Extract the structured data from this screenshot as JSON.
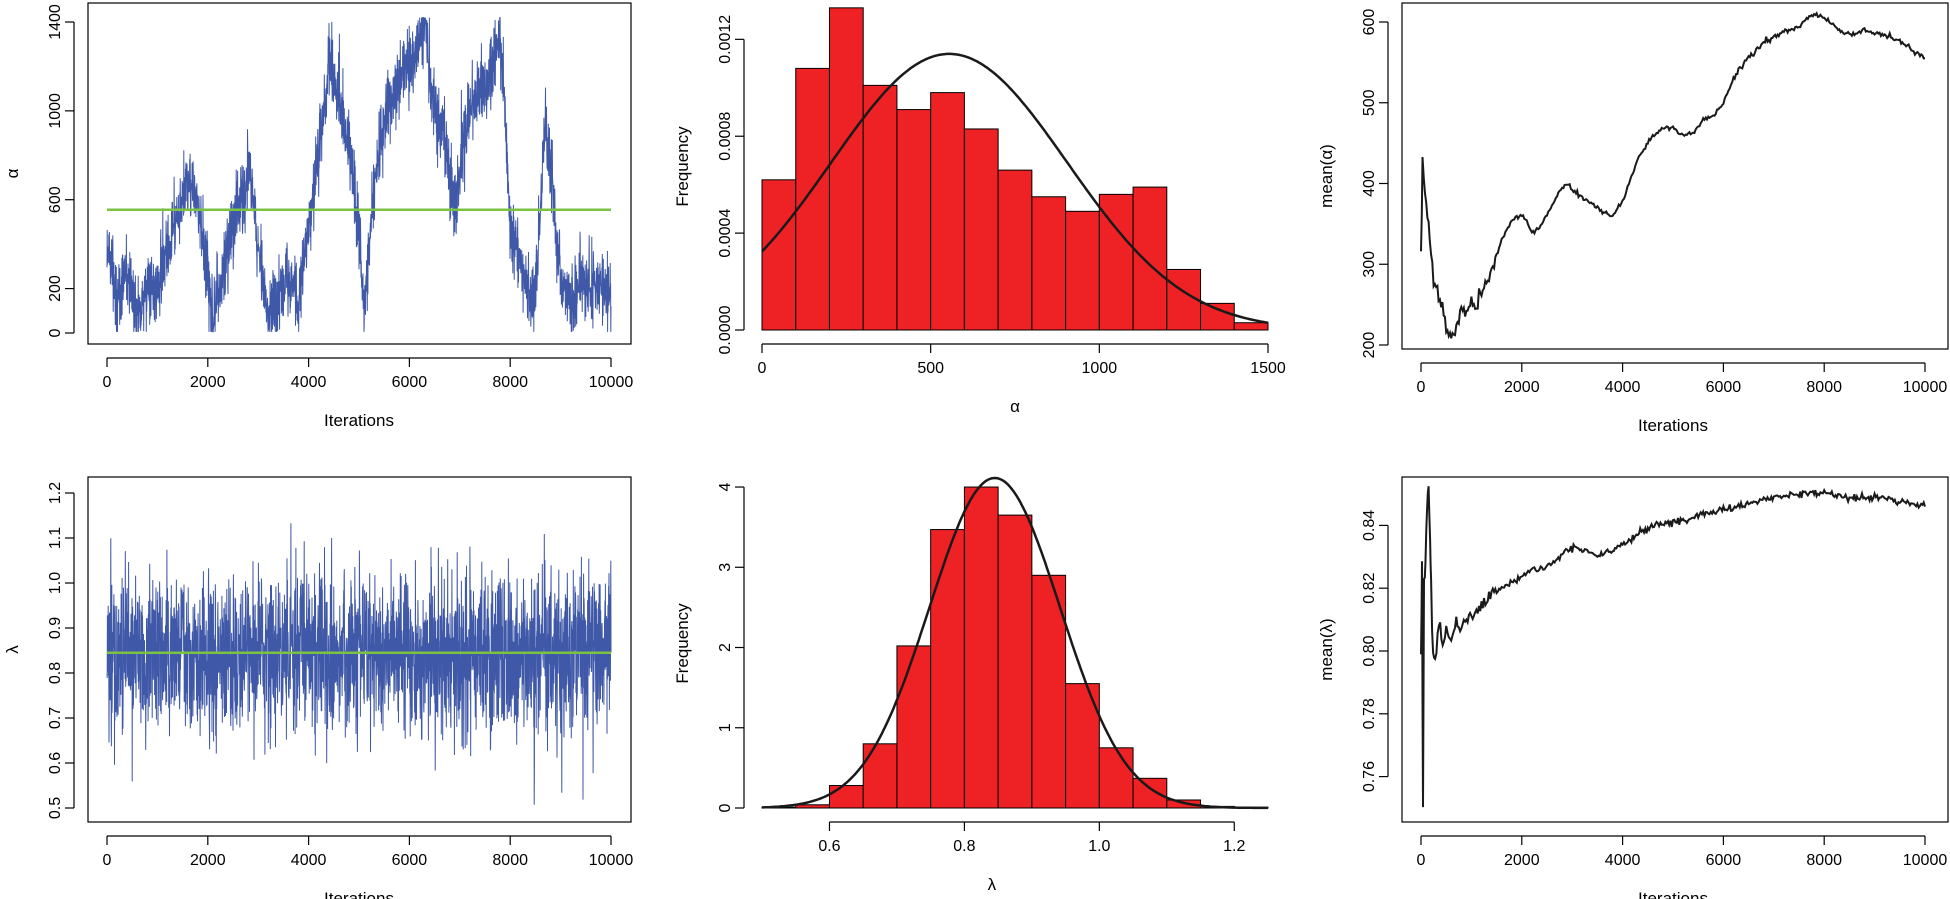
{
  "colors": {
    "trace": "#3f58a8",
    "mean_line": "#7cc242",
    "hist_fill": "#ee2124",
    "curve": "#1a1a1a",
    "axis": "#000000"
  },
  "chart_data": [
    {
      "id": "alpha-trace",
      "type": "line",
      "xlabel": "Iterations",
      "ylabel": "α",
      "xlim": [
        0,
        10000
      ],
      "ylim": [
        0,
        1400
      ],
      "xticks": [
        0,
        2000,
        4000,
        6000,
        8000,
        10000
      ],
      "yticks": [
        0,
        200,
        600,
        1000,
        1400
      ],
      "mean_line": 555,
      "trace_anchor_points": [
        [
          0,
          430
        ],
        [
          200,
          150
        ],
        [
          400,
          260
        ],
        [
          600,
          90
        ],
        [
          800,
          220
        ],
        [
          1000,
          180
        ],
        [
          1200,
          380
        ],
        [
          1400,
          530
        ],
        [
          1600,
          690
        ],
        [
          1800,
          580
        ],
        [
          2000,
          260
        ],
        [
          2100,
          60
        ],
        [
          2300,
          300
        ],
        [
          2500,
          480
        ],
        [
          2700,
          650
        ],
        [
          2850,
          720
        ],
        [
          3000,
          360
        ],
        [
          3200,
          80
        ],
        [
          3400,
          180
        ],
        [
          3600,
          260
        ],
        [
          3800,
          150
        ],
        [
          4000,
          480
        ],
        [
          4200,
          830
        ],
        [
          4400,
          1220
        ],
        [
          4600,
          1080
        ],
        [
          4800,
          830
        ],
        [
          5000,
          420
        ],
        [
          5100,
          120
        ],
        [
          5300,
          660
        ],
        [
          5500,
          980
        ],
        [
          5800,
          1130
        ],
        [
          6100,
          1240
        ],
        [
          6300,
          1380
        ],
        [
          6500,
          1000
        ],
        [
          6700,
          880
        ],
        [
          6900,
          560
        ],
        [
          7100,
          900
        ],
        [
          7300,
          1080
        ],
        [
          7500,
          1100
        ],
        [
          7700,
          1240
        ],
        [
          7800,
          1320
        ],
        [
          7900,
          980
        ],
        [
          8000,
          480
        ],
        [
          8200,
          320
        ],
        [
          8400,
          160
        ],
        [
          8500,
          200
        ],
        [
          8600,
          560
        ],
        [
          8700,
          960
        ],
        [
          8800,
          720
        ],
        [
          8900,
          480
        ],
        [
          9000,
          260
        ],
        [
          9200,
          130
        ],
        [
          9400,
          260
        ],
        [
          9600,
          190
        ],
        [
          9800,
          230
        ],
        [
          10000,
          150
        ]
      ],
      "trace_noise": 150
    },
    {
      "id": "alpha-hist",
      "type": "bar",
      "xlabel": "α",
      "ylabel": "Frequency",
      "xlim": [
        0,
        1500
      ],
      "ylim": [
        0,
        0.00135
      ],
      "xticks": [
        0,
        500,
        1000,
        1500
      ],
      "yticks": [
        0.0,
        0.0004,
        0.0008,
        0.0012
      ],
      "ytick_labels": [
        "0.0000",
        "0.0004",
        "0.0008",
        "0.0012"
      ],
      "bin_width": 100,
      "bin_starts": [
        0,
        100,
        200,
        300,
        400,
        500,
        600,
        700,
        800,
        900,
        1000,
        1100,
        1200,
        1300,
        1400
      ],
      "values": [
        0.00062,
        0.00108,
        0.00133,
        0.00101,
        0.00091,
        0.00098,
        0.00083,
        0.00066,
        0.00055,
        0.00049,
        0.00056,
        0.00059,
        0.00025,
        0.00011,
        3e-05
      ],
      "density_curve": {
        "mean": 555,
        "sd": 350
      }
    },
    {
      "id": "alpha-running-mean",
      "type": "line",
      "xlabel": "Iterations",
      "ylabel": "mean(α)",
      "xlim": [
        0,
        10000
      ],
      "ylim": [
        200,
        620
      ],
      "xticks": [
        0,
        2000,
        4000,
        6000,
        8000,
        10000
      ],
      "yticks": [
        200,
        300,
        400,
        500,
        600
      ],
      "points": [
        [
          0,
          315
        ],
        [
          30,
          425
        ],
        [
          80,
          390
        ],
        [
          150,
          350
        ],
        [
          250,
          280
        ],
        [
          400,
          255
        ],
        [
          500,
          220
        ],
        [
          600,
          210
        ],
        [
          700,
          220
        ],
        [
          800,
          245
        ],
        [
          900,
          240
        ],
        [
          1000,
          255
        ],
        [
          1100,
          250
        ],
        [
          1200,
          268
        ],
        [
          1400,
          290
        ],
        [
          1600,
          330
        ],
        [
          1800,
          355
        ],
        [
          2000,
          362
        ],
        [
          2100,
          352
        ],
        [
          2200,
          338
        ],
        [
          2400,
          350
        ],
        [
          2600,
          372
        ],
        [
          2800,
          395
        ],
        [
          2900,
          400
        ],
        [
          3000,
          392
        ],
        [
          3200,
          382
        ],
        [
          3400,
          375
        ],
        [
          3600,
          365
        ],
        [
          3800,
          360
        ],
        [
          4000,
          378
        ],
        [
          4300,
          430
        ],
        [
          4600,
          460
        ],
        [
          4800,
          470
        ],
        [
          5000,
          468
        ],
        [
          5200,
          460
        ],
        [
          5400,
          463
        ],
        [
          5600,
          478
        ],
        [
          5800,
          482
        ],
        [
          6000,
          500
        ],
        [
          6200,
          530
        ],
        [
          6400,
          550
        ],
        [
          6600,
          562
        ],
        [
          6800,
          573
        ],
        [
          7000,
          582
        ],
        [
          7200,
          588
        ],
        [
          7400,
          592
        ],
        [
          7600,
          600
        ],
        [
          7800,
          610
        ],
        [
          7900,
          608
        ],
        [
          8000,
          605
        ],
        [
          8200,
          596
        ],
        [
          8400,
          585
        ],
        [
          8600,
          585
        ],
        [
          8800,
          590
        ],
        [
          9000,
          586
        ],
        [
          9200,
          583
        ],
        [
          9400,
          578
        ],
        [
          9600,
          572
        ],
        [
          9800,
          562
        ],
        [
          10000,
          555
        ]
      ]
    },
    {
      "id": "lambda-trace",
      "type": "line",
      "xlabel": "Iterations",
      "ylabel": "λ",
      "xlim": [
        0,
        10000
      ],
      "ylim": [
        0.5,
        1.2
      ],
      "xticks": [
        0,
        2000,
        4000,
        6000,
        8000,
        10000
      ],
      "yticks": [
        0.5,
        0.6,
        0.7,
        0.8,
        0.9,
        1.0,
        1.1,
        1.2
      ],
      "ytick_labels": [
        "0.5",
        "0.6",
        "0.7",
        "0.8",
        "0.9",
        "1.0",
        "1.1",
        "1.2"
      ],
      "mean_line": 0.845,
      "trace_center": 0.845,
      "trace_sd": 0.09
    },
    {
      "id": "lambda-hist",
      "type": "bar",
      "xlabel": "λ",
      "ylabel": "Frequency",
      "xlim": [
        0.5,
        1.25
      ],
      "ylim": [
        0,
        4.1
      ],
      "xticks": [
        0.6,
        0.8,
        1.0,
        1.2
      ],
      "yticks": [
        0,
        1,
        2,
        3,
        4
      ],
      "bin_width": 0.05,
      "bin_starts": [
        0.5,
        0.55,
        0.6,
        0.65,
        0.7,
        0.75,
        0.8,
        0.85,
        0.9,
        0.95,
        1.0,
        1.05,
        1.1,
        1.15,
        1.2
      ],
      "values": [
        0.01,
        0.04,
        0.28,
        0.8,
        2.02,
        3.47,
        4.0,
        3.65,
        2.9,
        1.55,
        0.75,
        0.37,
        0.1,
        0.02,
        0.01
      ],
      "density_curve": {
        "mean": 0.845,
        "sd": 0.097
      }
    },
    {
      "id": "lambda-running-mean",
      "type": "line",
      "xlabel": "Iterations",
      "ylabel": "mean(λ)",
      "xlim": [
        0,
        10000
      ],
      "ylim": [
        0.75,
        0.855
      ],
      "xticks": [
        0,
        2000,
        4000,
        6000,
        8000,
        10000
      ],
      "yticks": [
        0.76,
        0.78,
        0.8,
        0.82,
        0.84
      ],
      "ytick_labels": [
        "0.76",
        "0.78",
        "0.80",
        "0.82",
        "0.84"
      ],
      "points": [
        [
          0,
          0.8
        ],
        [
          20,
          0.825
        ],
        [
          40,
          0.75
        ],
        [
          60,
          0.82
        ],
        [
          90,
          0.83
        ],
        [
          120,
          0.846
        ],
        [
          150,
          0.853
        ],
        [
          180,
          0.835
        ],
        [
          200,
          0.82
        ],
        [
          240,
          0.8
        ],
        [
          280,
          0.795
        ],
        [
          330,
          0.806
        ],
        [
          380,
          0.81
        ],
        [
          430,
          0.8
        ],
        [
          500,
          0.806
        ],
        [
          600,
          0.803
        ],
        [
          700,
          0.808
        ],
        [
          800,
          0.806
        ],
        [
          900,
          0.81
        ],
        [
          1000,
          0.81
        ],
        [
          1200,
          0.815
        ],
        [
          1400,
          0.818
        ],
        [
          1600,
          0.82
        ],
        [
          1800,
          0.822
        ],
        [
          2000,
          0.824
        ],
        [
          2200,
          0.826
        ],
        [
          2400,
          0.826
        ],
        [
          2600,
          0.828
        ],
        [
          2800,
          0.831
        ],
        [
          3000,
          0.833
        ],
        [
          3200,
          0.832
        ],
        [
          3400,
          0.831
        ],
        [
          3600,
          0.831
        ],
        [
          3800,
          0.832
        ],
        [
          4000,
          0.834
        ],
        [
          4300,
          0.837
        ],
        [
          4600,
          0.84
        ],
        [
          5000,
          0.841
        ],
        [
          5500,
          0.843
        ],
        [
          6000,
          0.845
        ],
        [
          6500,
          0.847
        ],
        [
          7000,
          0.849
        ],
        [
          7500,
          0.85
        ],
        [
          8000,
          0.851
        ],
        [
          8300,
          0.849
        ],
        [
          8600,
          0.849
        ],
        [
          9000,
          0.849
        ],
        [
          9400,
          0.848
        ],
        [
          9700,
          0.847
        ],
        [
          10000,
          0.846
        ]
      ]
    }
  ]
}
